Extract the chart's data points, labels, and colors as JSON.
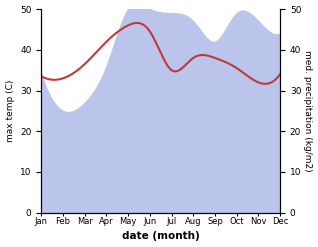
{
  "months": [
    "Jan",
    "Feb",
    "Mar",
    "Apr",
    "May",
    "Jun",
    "Jul",
    "Aug",
    "Sep",
    "Oct",
    "Nov",
    "Dec"
  ],
  "temp": [
    33.5,
    33.0,
    36.5,
    42.0,
    46.0,
    44.5,
    35.0,
    38.0,
    38.0,
    35.5,
    32.0,
    34.0
  ],
  "precip": [
    34,
    25,
    27,
    36,
    50,
    50,
    49,
    47,
    42,
    49,
    47,
    44
  ],
  "temp_color": "#c0393b",
  "precip_fill_color": "#bbc5ec",
  "ylim_left": [
    0,
    50
  ],
  "ylim_right": [
    0,
    50
  ],
  "xlabel": "date (month)",
  "ylabel_left": "max temp (C)",
  "ylabel_right": "med. precipitation (kg/m2)",
  "bg_color": "#ffffff",
  "yticks": [
    0,
    10,
    20,
    30,
    40,
    50
  ]
}
